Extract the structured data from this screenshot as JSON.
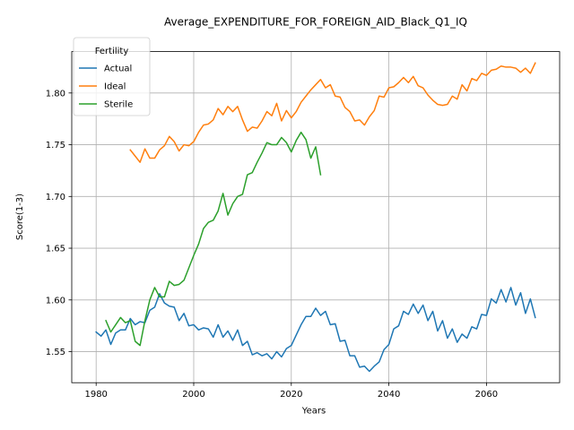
{
  "chart_data": {
    "type": "line",
    "title": "Average_EXPENDITURE_FOR_FOREIGN_AID_Black_Q1_IQ",
    "xlabel": "Years",
    "ylabel": "Score(1-3)",
    "xlim": [
      1975,
      2075
    ],
    "ylim": [
      1.52,
      1.84
    ],
    "xticks": [
      1980,
      2000,
      2020,
      2040,
      2060
    ],
    "yticks": [
      1.55,
      1.6,
      1.65,
      1.7,
      1.75,
      1.8
    ],
    "xtick_labels": [
      "1980",
      "2000",
      "2020",
      "2040",
      "2060"
    ],
    "ytick_labels": [
      "1.55",
      "1.60",
      "1.65",
      "1.70",
      "1.75",
      "1.80"
    ],
    "grid": true,
    "legend": {
      "title": "Fertility",
      "placement": "top-left"
    },
    "series": [
      {
        "name": "Actual",
        "color": "#1f77b4",
        "x": [
          1980,
          1981,
          1982,
          1983,
          1984,
          1985,
          1986,
          1987,
          1988,
          1989,
          1990,
          1991,
          1992,
          1993,
          1994,
          1995,
          1996,
          1997,
          1998,
          1999,
          2000,
          2001,
          2002,
          2003,
          2004,
          2005,
          2006,
          2007,
          2008,
          2009,
          2010,
          2011,
          2012,
          2013,
          2014,
          2015,
          2016,
          2017,
          2018,
          2019,
          2020,
          2021,
          2022,
          2023,
          2024,
          2025,
          2026,
          2027,
          2028,
          2029,
          2030,
          2031,
          2032,
          2033,
          2034,
          2035,
          2036,
          2037,
          2038,
          2039,
          2040,
          2041,
          2042,
          2043,
          2044,
          2045,
          2046,
          2047,
          2048,
          2049,
          2050,
          2051,
          2052,
          2053,
          2054,
          2055,
          2056,
          2057,
          2058,
          2059,
          2060,
          2061,
          2062,
          2063,
          2064,
          2065,
          2066,
          2067,
          2068,
          2069,
          2070
        ],
        "values": [
          1.569,
          1.565,
          1.571,
          1.557,
          1.568,
          1.571,
          1.571,
          1.582,
          1.576,
          1.579,
          1.578,
          1.59,
          1.593,
          1.606,
          1.597,
          1.594,
          1.593,
          1.58,
          1.587,
          1.575,
          1.576,
          1.571,
          1.573,
          1.572,
          1.564,
          1.576,
          1.564,
          1.57,
          1.561,
          1.571,
          1.556,
          1.56,
          1.547,
          1.549,
          1.546,
          1.548,
          1.543,
          1.55,
          1.545,
          1.553,
          1.556,
          1.566,
          1.576,
          1.584,
          1.584,
          1.592,
          1.585,
          1.589,
          1.576,
          1.577,
          1.56,
          1.561,
          1.546,
          1.546,
          1.535,
          1.536,
          1.531,
          1.536,
          1.54,
          1.552,
          1.557,
          1.572,
          1.575,
          1.589,
          1.586,
          1.596,
          1.587,
          1.595,
          1.58,
          1.589,
          1.57,
          1.58,
          1.563,
          1.572,
          1.559,
          1.567,
          1.563,
          1.574,
          1.572,
          1.586,
          1.585,
          1.601,
          1.597,
          1.61,
          1.598,
          1.612,
          1.595,
          1.607,
          1.587,
          1.601,
          1.583
        ]
      },
      {
        "name": "Ideal",
        "color": "#ff7f0e",
        "x": [
          1987,
          1988,
          1989,
          1990,
          1991,
          1992,
          1993,
          1994,
          1995,
          1996,
          1997,
          1998,
          1999,
          2000,
          2001,
          2002,
          2003,
          2004,
          2005,
          2006,
          2007,
          2008,
          2009,
          2010,
          2011,
          2012,
          2013,
          2014,
          2015,
          2016,
          2017,
          2018,
          2019,
          2020,
          2021,
          2022,
          2023,
          2024,
          2025,
          2026,
          2027,
          2028,
          2029,
          2030,
          2031,
          2032,
          2033,
          2034,
          2035,
          2036,
          2037,
          2038,
          2039,
          2040,
          2041,
          2042,
          2043,
          2044,
          2045,
          2046,
          2047,
          2048,
          2049,
          2050,
          2051,
          2052,
          2053,
          2054,
          2055,
          2056,
          2057,
          2058,
          2059,
          2060,
          2061,
          2062,
          2063,
          2064,
          2065,
          2066,
          2067,
          2068,
          2069,
          2070
        ],
        "values": [
          1.745,
          1.739,
          1.733,
          1.746,
          1.737,
          1.737,
          1.745,
          1.749,
          1.758,
          1.753,
          1.744,
          1.75,
          1.749,
          1.753,
          1.762,
          1.769,
          1.77,
          1.774,
          1.785,
          1.779,
          1.787,
          1.782,
          1.787,
          1.774,
          1.763,
          1.767,
          1.766,
          1.773,
          1.782,
          1.778,
          1.79,
          1.773,
          1.783,
          1.776,
          1.782,
          1.791,
          1.797,
          1.803,
          1.808,
          1.813,
          1.805,
          1.808,
          1.797,
          1.796,
          1.786,
          1.782,
          1.773,
          1.774,
          1.769,
          1.777,
          1.783,
          1.797,
          1.796,
          1.805,
          1.806,
          1.81,
          1.815,
          1.81,
          1.816,
          1.807,
          1.805,
          1.798,
          1.793,
          1.789,
          1.788,
          1.789,
          1.797,
          1.794,
          1.808,
          1.802,
          1.814,
          1.812,
          1.819,
          1.817,
          1.822,
          1.823,
          1.826,
          1.825,
          1.825,
          1.824,
          1.82,
          1.824,
          1.819,
          1.829
        ]
      },
      {
        "name": "Sterile",
        "color": "#2ca02c",
        "x": [
          1982,
          1983,
          1984,
          1985,
          1986,
          1987,
          1988,
          1989,
          1990,
          1991,
          1992,
          1993,
          1994,
          1995,
          1996,
          1997,
          1998,
          1999,
          2000,
          2001,
          2002,
          2003,
          2004,
          2005,
          2006,
          2007,
          2008,
          2009,
          2010,
          2011,
          2012,
          2013,
          2014,
          2015,
          2016,
          2017,
          2018,
          2019,
          2020,
          2021,
          2022,
          2023,
          2024,
          2025,
          2026
        ],
        "values": [
          1.58,
          1.569,
          1.576,
          1.583,
          1.578,
          1.58,
          1.56,
          1.556,
          1.58,
          1.6,
          1.612,
          1.603,
          1.603,
          1.618,
          1.614,
          1.615,
          1.619,
          1.631,
          1.643,
          1.654,
          1.669,
          1.675,
          1.677,
          1.686,
          1.703,
          1.682,
          1.693,
          1.7,
          1.702,
          1.721,
          1.723,
          1.733,
          1.742,
          1.752,
          1.75,
          1.75,
          1.757,
          1.752,
          1.743,
          1.754,
          1.762,
          1.755,
          1.737,
          1.748,
          1.721
        ]
      }
    ]
  }
}
